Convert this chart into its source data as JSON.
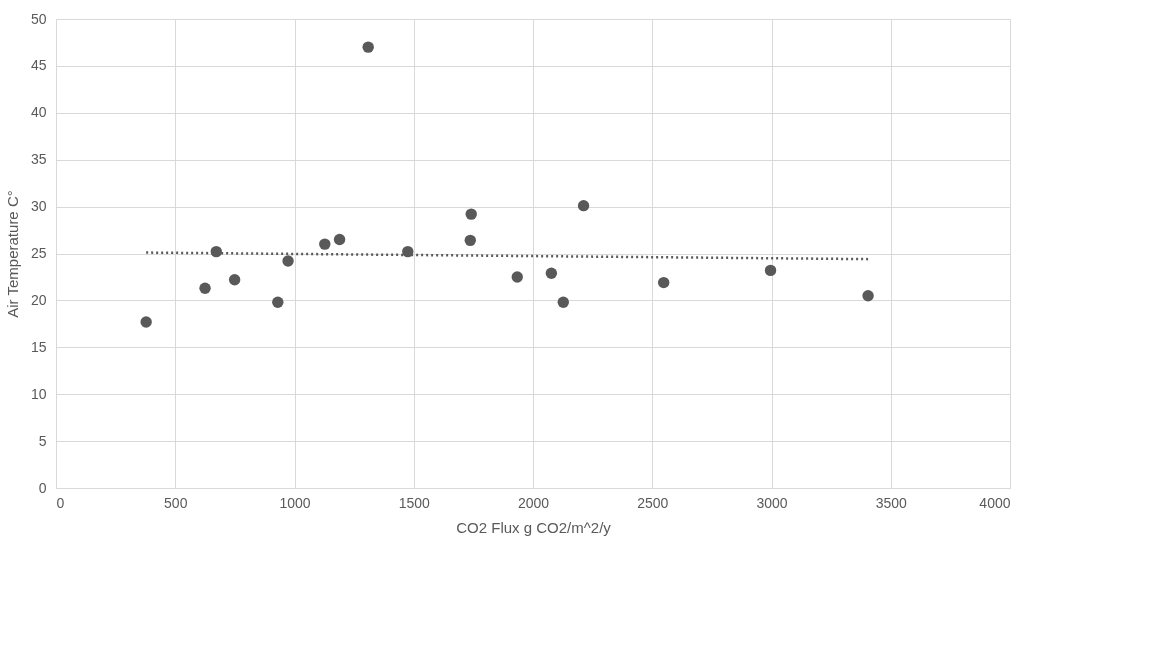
{
  "chart_data": {
    "type": "scatter",
    "xlabel": "CO2 Flux g CO2/m^2/y",
    "ylabel": "Air Temperature C°",
    "xlim": [
      0,
      4000
    ],
    "xticks": [
      0,
      500,
      1000,
      1500,
      2000,
      2500,
      3000,
      3500,
      4000
    ],
    "ylim": [
      0,
      50
    ],
    "yticks": [
      0,
      5,
      10,
      15,
      20,
      25,
      30,
      35,
      40,
      45,
      50
    ],
    "grid": true,
    "legend": false,
    "marker": "circle",
    "series": [
      {
        "type": "scatter",
        "color": "#595959",
        "x": [
          378,
          625,
          672,
          749,
          930,
          973,
          1127,
          1189,
          1309,
          1475,
          1741,
          1737,
          1934,
          2077,
          2127,
          2212,
          2548,
          2996,
          3405
        ],
        "values": [
          17.7,
          21.3,
          25.2,
          22.2,
          19.8,
          24.2,
          26.0,
          26.5,
          47.0,
          25.2,
          29.2,
          26.4,
          22.5,
          22.9,
          19.8,
          30.1,
          21.9,
          23.2,
          20.5
        ]
      },
      {
        "type": "line",
        "color": "#595959",
        "line_style": "dotted",
        "marker": "none",
        "x": [
          378,
          3405
        ],
        "values": [
          25.1,
          24.4
        ]
      }
    ]
  }
}
